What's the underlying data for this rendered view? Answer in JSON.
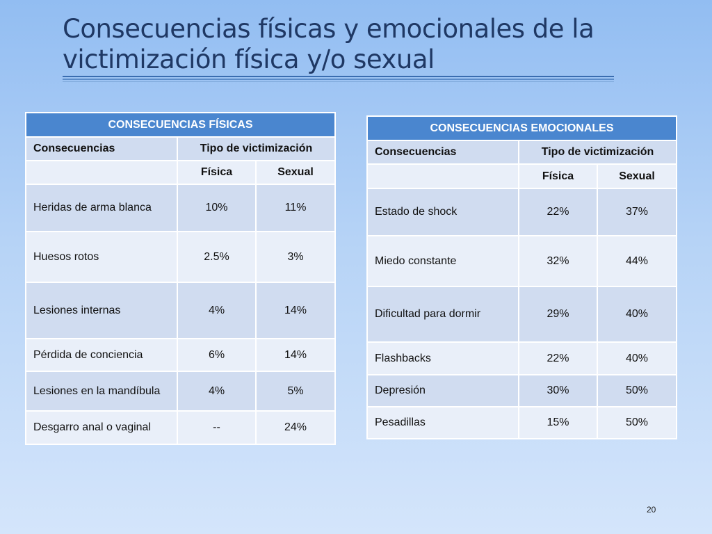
{
  "slide": {
    "title": "Consecuencias físicas y emocionales de la victimización física y/o sexual",
    "page_number": "20"
  },
  "table_fisicas": {
    "header": "CONSECUENCIAS FÍSICAS",
    "col_consecuencias": "Consecuencias",
    "col_tipo": "Tipo de victimización",
    "col_fisica": "Física",
    "col_sexual": "Sexual",
    "rows": [
      {
        "label": "Heridas de arma blanca",
        "fisica": "10%",
        "sexual": "11%"
      },
      {
        "label": "Huesos rotos",
        "fisica": "2.5%",
        "sexual": "3%"
      },
      {
        "label": "Lesiones internas",
        "fisica": "4%",
        "sexual": "14%"
      },
      {
        "label": "Pérdida de conciencia",
        "fisica": "6%",
        "sexual": "14%"
      },
      {
        "label": "Lesiones en la mandíbula",
        "fisica": "4%",
        "sexual": "5%"
      },
      {
        "label": "Desgarro anal o vaginal",
        "fisica": "--",
        "sexual": "24%"
      }
    ]
  },
  "table_emocionales": {
    "header": "CONSECUENCIAS EMOCIONALES",
    "col_consecuencias": "Consecuencias",
    "col_tipo": "Tipo de victimización",
    "col_fisica": "Física",
    "col_sexual": "Sexual",
    "rows": [
      {
        "label": "Estado de shock",
        "fisica": "22%",
        "sexual": "37%"
      },
      {
        "label": "Miedo  constante",
        "fisica": "32%",
        "sexual": "44%"
      },
      {
        "label": "Dificultad para dormir",
        "fisica": "29%",
        "sexual": "40%"
      },
      {
        "label": "Flashbacks",
        "fisica": "22%",
        "sexual": "40%"
      },
      {
        "label": "Depresión",
        "fisica": "30%",
        "sexual": "50%"
      },
      {
        "label": "Pesadillas",
        "fisica": "15%",
        "sexual": "50%"
      }
    ]
  }
}
